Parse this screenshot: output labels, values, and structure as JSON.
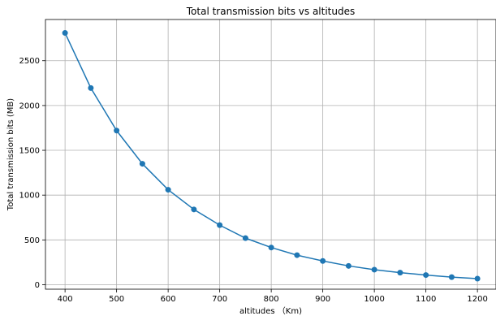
{
  "chart_data": {
    "type": "line",
    "title": "Total transmission bits vs altitudes",
    "xlabel": "altitudes （Km)",
    "ylabel": "Total transmission bits (MB)",
    "x": [
      400,
      450,
      500,
      550,
      600,
      650,
      700,
      750,
      800,
      850,
      900,
      950,
      1000,
      1050,
      1100,
      1150,
      1200
    ],
    "series": [
      {
        "values": [
          2810,
          2195,
          1720,
          1350,
          1060,
          840,
          665,
          520,
          415,
          330,
          265,
          210,
          168,
          135,
          108,
          85,
          68
        ],
        "color": "#1f77b4",
        "marker": "circle"
      }
    ],
    "xlim": [
      362,
      1236
    ],
    "ylim": [
      -50,
      2960
    ],
    "x_ticks": [
      400,
      500,
      600,
      700,
      800,
      900,
      1000,
      1100,
      1200
    ],
    "x_tick_labels": [
      "400",
      "500",
      "600",
      "700",
      "800",
      "900",
      "1000",
      "1100",
      "1200"
    ],
    "y_ticks": [
      0,
      500,
      1000,
      1500,
      2000,
      2500
    ],
    "y_tick_labels": [
      "0",
      "500",
      "1000",
      "1500",
      "2000",
      "2500"
    ],
    "grid": true,
    "legend": "none"
  }
}
